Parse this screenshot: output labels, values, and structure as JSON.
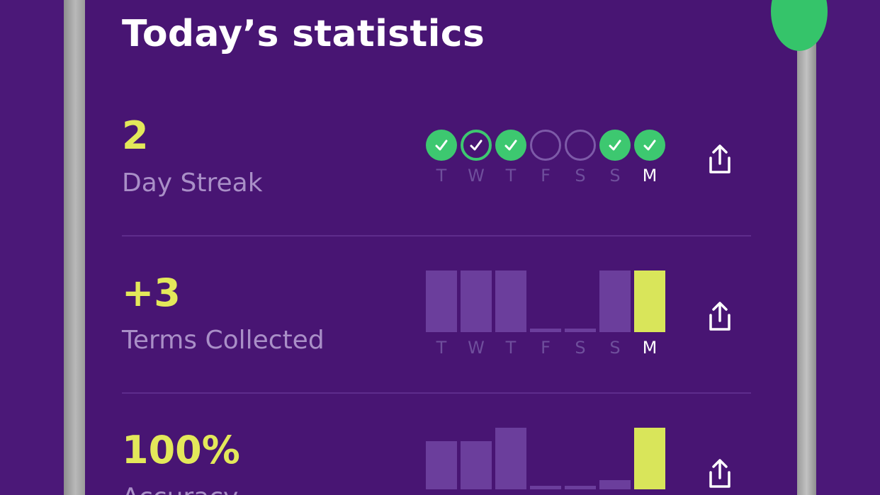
{
  "title": "Today’s statistics",
  "colors": {
    "background": "#481573",
    "accent_yellow": "#e3e85a",
    "check_green": "#3dc870",
    "bar_purple": "#6b3e9c",
    "label_purple": "#a98fc7"
  },
  "streak": {
    "value": "2",
    "label": "Day Streak",
    "days": [
      {
        "letter": "T",
        "status": "done"
      },
      {
        "letter": "W",
        "status": "today-outline"
      },
      {
        "letter": "T",
        "status": "done"
      },
      {
        "letter": "F",
        "status": "empty"
      },
      {
        "letter": "S",
        "status": "empty"
      },
      {
        "letter": "S",
        "status": "done"
      },
      {
        "letter": "M",
        "status": "done",
        "current": true
      }
    ],
    "share_icon": "share-icon"
  },
  "terms": {
    "value": "+3",
    "label": "Terms Collected",
    "days": [
      "T",
      "W",
      "T",
      "F",
      "S",
      "S",
      "M"
    ],
    "bar_levels": [
      1.0,
      1.0,
      1.0,
      0.06,
      0.06,
      1.0,
      1.0
    ],
    "share_icon": "share-icon"
  },
  "accuracy": {
    "value": "100%",
    "label": "Accuracy",
    "bar_levels": [
      0.78,
      0.78,
      1.0,
      0.06,
      0.06,
      0.15,
      1.0
    ],
    "share_icon": "share-icon"
  }
}
